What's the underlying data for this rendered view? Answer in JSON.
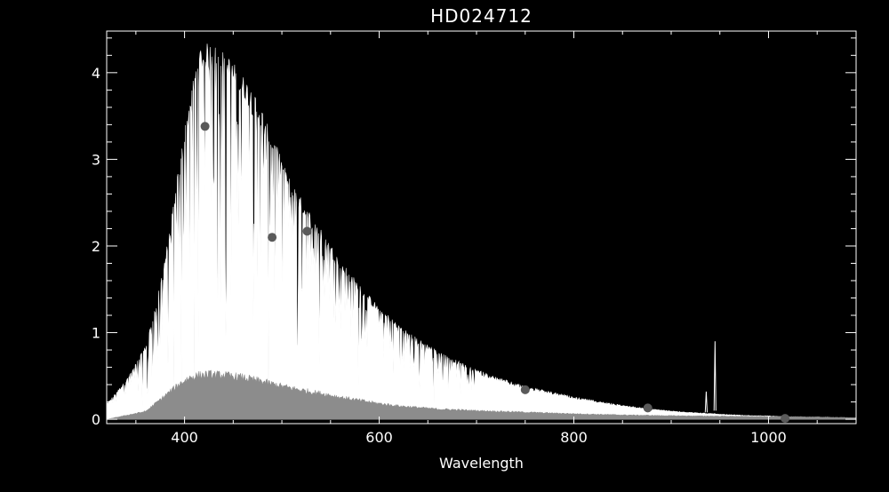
{
  "chart_data": {
    "type": "line",
    "title": "HD024712",
    "xlabel": "Wavelength",
    "ylabel": "",
    "xlim": [
      320,
      1090
    ],
    "ylim": [
      -0.05,
      4.48
    ],
    "x_ticks": [
      400,
      600,
      800,
      1000
    ],
    "y_ticks": [
      0,
      1,
      2,
      3,
      4
    ],
    "grid": false,
    "colors": {
      "background": "#000000",
      "axes": "#ffffff",
      "spectrum": "#ffffff",
      "error_spectrum": "#8c8c8c",
      "photometry_points": "#5a5a5a"
    },
    "series": [
      {
        "values": [
          [
            320,
            0.18
          ],
          [
            340,
            0.45
          ],
          [
            360,
            0.85
          ],
          [
            372,
            1.4
          ],
          [
            385,
            2.2
          ],
          [
            395,
            3.0
          ],
          [
            405,
            3.7
          ],
          [
            415,
            4.3
          ],
          [
            425,
            4.35
          ],
          [
            435,
            4.3
          ],
          [
            445,
            4.2
          ],
          [
            455,
            4.05
          ],
          [
            465,
            3.9
          ],
          [
            475,
            3.7
          ],
          [
            485,
            3.45
          ],
          [
            495,
            3.15
          ],
          [
            505,
            2.85
          ],
          [
            520,
            2.55
          ],
          [
            540,
            2.2
          ],
          [
            560,
            1.85
          ],
          [
            580,
            1.55
          ],
          [
            600,
            1.3
          ],
          [
            620,
            1.1
          ],
          [
            640,
            0.93
          ],
          [
            660,
            0.8
          ],
          [
            680,
            0.68
          ],
          [
            700,
            0.58
          ],
          [
            720,
            0.49
          ],
          [
            740,
            0.42
          ],
          [
            760,
            0.36
          ],
          [
            780,
            0.31
          ],
          [
            800,
            0.26
          ],
          [
            820,
            0.22
          ],
          [
            840,
            0.18
          ],
          [
            860,
            0.15
          ],
          [
            880,
            0.12
          ],
          [
            900,
            0.1
          ],
          [
            920,
            0.08
          ],
          [
            940,
            0.07
          ],
          [
            960,
            0.055
          ],
          [
            980,
            0.045
          ],
          [
            1000,
            0.04
          ],
          [
            1020,
            0.03
          ],
          [
            1040,
            0.02
          ],
          [
            1060,
            0.01
          ],
          [
            1090,
            0.0
          ]
        ]
      },
      {
        "values": [
          [
            320,
            0.0
          ],
          [
            340,
            0.05
          ],
          [
            360,
            0.1
          ],
          [
            372,
            0.22
          ],
          [
            385,
            0.35
          ],
          [
            395,
            0.45
          ],
          [
            405,
            0.53
          ],
          [
            415,
            0.56
          ],
          [
            425,
            0.57
          ],
          [
            440,
            0.56
          ],
          [
            460,
            0.53
          ],
          [
            480,
            0.48
          ],
          [
            500,
            0.42
          ],
          [
            520,
            0.37
          ],
          [
            540,
            0.33
          ],
          [
            560,
            0.28
          ],
          [
            580,
            0.24
          ],
          [
            600,
            0.2
          ],
          [
            620,
            0.17
          ],
          [
            640,
            0.15
          ],
          [
            660,
            0.13
          ],
          [
            680,
            0.12
          ],
          [
            700,
            0.11
          ],
          [
            750,
            0.09
          ],
          [
            800,
            0.07
          ],
          [
            850,
            0.055
          ],
          [
            900,
            0.045
          ],
          [
            950,
            0.04
          ],
          [
            1000,
            0.035
          ],
          [
            1050,
            0.03
          ],
          [
            1090,
            0.02
          ]
        ]
      },
      {
        "values": [
          [
            421,
            3.38
          ],
          [
            490,
            2.1
          ],
          [
            526,
            2.17
          ],
          [
            750,
            0.34
          ],
          [
            876,
            0.13
          ],
          [
            1017,
            0.01
          ]
        ]
      }
    ]
  }
}
